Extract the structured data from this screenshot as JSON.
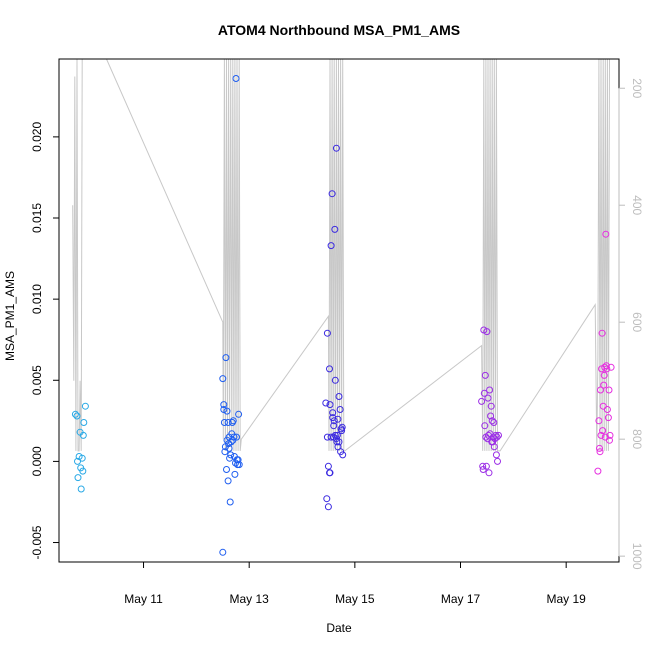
{
  "chart_data": {
    "type": "scatter",
    "title": "ATOM4 Northbound MSA_PM1_AMS",
    "xlabel": "Date",
    "ylabel": "MSA_PM1_AMS",
    "x_ticks": [
      "May 11",
      "May 13",
      "May 15",
      "May 17",
      "May 19"
    ],
    "x_tick_days": [
      11,
      13,
      15,
      17,
      19
    ],
    "xlim": [
      9.4,
      20.0
    ],
    "ylim": [
      -0.0062,
      0.0248
    ],
    "y_ticks": [
      -0.005,
      0.0,
      0.005,
      0.01,
      0.015,
      0.02
    ],
    "y_tick_labels": [
      "-0.005",
      "0.000",
      "0.005",
      "0.010",
      "0.015",
      "0.020"
    ],
    "y2_ticks": [
      200,
      400,
      600,
      800,
      1000
    ],
    "y2_tick_labels": [
      "200",
      "400",
      "600",
      "800",
      "1000"
    ],
    "y2lim": [
      1010,
      150
    ],
    "grid": false,
    "colors": {
      "flight1": "#29a9e6",
      "flight2": "#1f5ef0",
      "flight3": "#3b2ae0",
      "flight4": "#9b2ee6",
      "flight5": "#e62ee0",
      "secondary_line": "#c8c8c8"
    },
    "series": [
      {
        "color_key": "flight1",
        "x": [
          9.71,
          9.74,
          9.75,
          9.76,
          9.78,
          9.8,
          9.81,
          9.82,
          9.84,
          9.85,
          9.86,
          9.87,
          9.9
        ],
        "y": [
          0.0029,
          0.0028,
          0.0,
          -0.001,
          0.0003,
          0.0018,
          -0.0004,
          -0.0017,
          0.0002,
          -0.0006,
          0.0016,
          0.0024,
          0.0034
        ]
      },
      {
        "color_key": "flight2",
        "x": [
          12.5,
          12.5,
          12.52,
          12.53,
          12.55,
          12.56,
          12.58,
          12.6,
          12.61,
          12.62,
          12.63,
          12.64,
          12.66,
          12.68,
          12.7,
          12.72,
          12.74,
          12.76,
          12.78,
          12.8,
          12.52,
          12.54,
          12.57,
          12.6,
          12.65,
          12.69,
          12.73,
          12.77,
          12.58,
          12.62,
          12.67,
          12.71,
          12.75,
          12.79,
          12.81
        ],
        "y": [
          -0.0056,
          0.0051,
          0.0035,
          0.0024,
          0.0009,
          0.0064,
          0.0031,
          0.0024,
          0.0011,
          0.0015,
          0.0002,
          -0.0025,
          0.0012,
          0.0024,
          0.0025,
          0.0003,
          -0.0001,
          0.0015,
          -0.0002,
          0.0029,
          0.0032,
          0.0006,
          -0.0005,
          -0.0012,
          0.0004,
          0.0013,
          -0.0008,
          0.0001,
          0.0013,
          0.0008,
          0.0017,
          0.0015,
          0.0236,
          0.0001,
          -0.0002
        ]
      },
      {
        "color_key": "flight3",
        "x": [
          14.45,
          14.47,
          14.48,
          14.5,
          14.52,
          14.53,
          14.55,
          14.57,
          14.58,
          14.6,
          14.62,
          14.63,
          14.65,
          14.67,
          14.68,
          14.7,
          14.72,
          14.74,
          14.75,
          14.77,
          14.5,
          14.55,
          14.6,
          14.65,
          14.7,
          14.48,
          14.52,
          14.58,
          14.63,
          14.68,
          14.73,
          14.76,
          14.53,
          14.61,
          14.66
        ],
        "y": [
          0.0036,
          -0.0023,
          0.0079,
          -0.0028,
          0.0057,
          0.0035,
          0.0133,
          0.0165,
          0.003,
          0.0015,
          0.0143,
          0.005,
          0.0193,
          0.0016,
          0.0026,
          0.004,
          0.0032,
          0.002,
          0.0019,
          0.0004,
          -0.0003,
          0.0015,
          0.0022,
          0.0014,
          0.0012,
          0.0015,
          -0.0007,
          0.0027,
          0.0016,
          0.0009,
          0.0006,
          0.0021,
          -0.0007,
          0.0025,
          0.0012
        ]
      },
      {
        "color_key": "flight4",
        "x": [
          17.4,
          17.42,
          17.44,
          17.45,
          17.47,
          17.48,
          17.5,
          17.52,
          17.53,
          17.55,
          17.57,
          17.58,
          17.6,
          17.62,
          17.63,
          17.65,
          17.67,
          17.68,
          17.7,
          17.72,
          17.43,
          17.49,
          17.54,
          17.59,
          17.64,
          17.69,
          17.46,
          17.51,
          17.56,
          17.61
        ],
        "y": [
          0.0037,
          -0.0003,
          0.0081,
          0.0042,
          0.0053,
          0.0015,
          0.008,
          0.0039,
          0.0016,
          0.0044,
          0.0028,
          0.0034,
          0.0025,
          0.0015,
          0.0024,
          0.0014,
          0.0016,
          0.0004,
          0.0,
          0.0016,
          -0.0005,
          -0.0003,
          -0.0007,
          0.0012,
          0.0009,
          0.0015,
          0.0022,
          0.0014,
          0.0017,
          0.0012
        ]
      },
      {
        "color_key": "flight5",
        "x": [
          19.6,
          19.62,
          19.63,
          19.65,
          19.67,
          19.68,
          19.7,
          19.72,
          19.73,
          19.75,
          19.77,
          19.78,
          19.8,
          19.82,
          19.83,
          19.85,
          19.66,
          19.71,
          19.76,
          19.81,
          19.64,
          19.69,
          19.74
        ],
        "y": [
          -0.0006,
          0.0025,
          0.0008,
          0.0044,
          0.0057,
          0.0079,
          0.0034,
          0.0053,
          0.0058,
          0.014,
          0.0057,
          0.0032,
          0.0027,
          0.0013,
          0.0016,
          0.0058,
          0.0016,
          0.0047,
          0.0059,
          0.0044,
          0.0006,
          0.0019,
          0.0015
        ]
      }
    ],
    "secondary_series": {
      "description_key": "altitude",
      "x": [
        9.66,
        9.68,
        9.7,
        9.72,
        9.74,
        9.76,
        9.78,
        9.8,
        9.82,
        9.84,
        9.86,
        9.88,
        9.9,
        10.3,
        12.5,
        12.51,
        12.53,
        12.55,
        12.57,
        12.59,
        12.61,
        12.63,
        12.65,
        12.67,
        12.69,
        12.71,
        12.73,
        12.75,
        12.77,
        12.79,
        12.81,
        12.83,
        12.85,
        14.5,
        14.51,
        14.53,
        14.55,
        14.57,
        14.59,
        14.61,
        14.63,
        14.65,
        14.67,
        14.69,
        14.71,
        14.73,
        14.75,
        14.77,
        14.79,
        14.81,
        17.4,
        17.42,
        17.44,
        17.46,
        17.48,
        17.5,
        17.52,
        17.54,
        17.56,
        17.58,
        17.6,
        17.62,
        17.64,
        17.66,
        17.68,
        17.7,
        17.72,
        17.75,
        19.55,
        19.58,
        19.6,
        19.62,
        19.64,
        19.66,
        19.68,
        19.7,
        19.72,
        19.74,
        19.76,
        19.78,
        19.8,
        19.82,
        19.84
      ],
      "y": [
        400,
        700,
        180,
        820,
        150,
        820,
        820,
        700,
        820,
        150,
        150,
        150,
        150,
        150,
        600,
        800,
        150,
        820,
        150,
        820,
        150,
        800,
        150,
        820,
        150,
        820,
        150,
        820,
        150,
        820,
        150,
        820,
        800,
        590,
        820,
        150,
        820,
        150,
        820,
        150,
        820,
        150,
        820,
        150,
        820,
        150,
        820,
        150,
        820,
        820,
        640,
        820,
        150,
        820,
        150,
        820,
        150,
        820,
        150,
        820,
        150,
        820,
        150,
        820,
        150,
        820,
        820,
        820,
        570,
        820,
        660,
        150,
        820,
        150,
        820,
        150,
        820,
        150,
        820,
        150,
        820,
        150,
        150
      ]
    }
  }
}
